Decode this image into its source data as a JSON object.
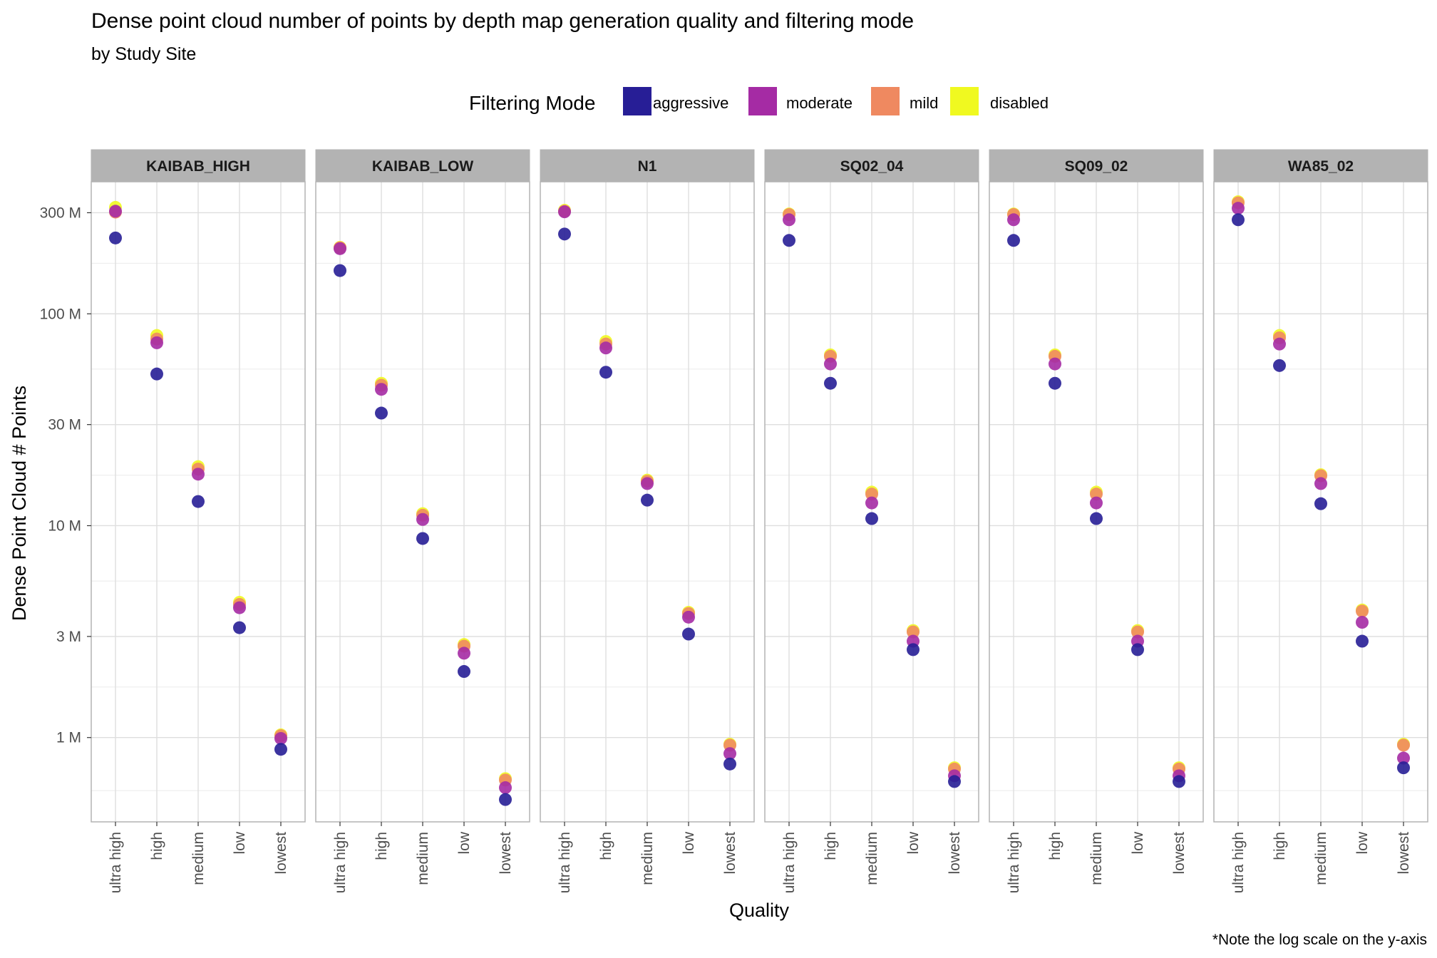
{
  "chart_data": {
    "type": "scatter",
    "title": "Dense point cloud number of points by depth map generation quality and filtering mode",
    "subtitle": "by Study Site",
    "xlabel": "Quality",
    "ylabel": "Dense Point Cloud # Points",
    "caption": "*Note the log scale on the y-axis",
    "y_scale": "log10",
    "ylim": [
      400000,
      420000000
    ],
    "y_ticks": [
      {
        "value": 1000000,
        "label": "1 M"
      },
      {
        "value": 3000000,
        "label": "3 M"
      },
      {
        "value": 10000000,
        "label": "10 M"
      },
      {
        "value": 30000000,
        "label": "30 M"
      },
      {
        "value": 100000000,
        "label": "100 M"
      },
      {
        "value": 300000000,
        "label": "300 M"
      }
    ],
    "y_minor_gridlines": [
      562000,
      1732000,
      5480000,
      17320000,
      54800000,
      173200000
    ],
    "categories": [
      "ultra high",
      "high",
      "medium",
      "low",
      "lowest"
    ],
    "legend": {
      "title": "Filtering Mode",
      "position": "top",
      "items": [
        {
          "name": "aggressive",
          "color": "#271E96"
        },
        {
          "name": "moderate",
          "color": "#A52BA4"
        },
        {
          "name": "mild",
          "color": "#EF8960"
        },
        {
          "name": "disabled",
          "color": "#F0F920"
        }
      ]
    },
    "grid": true,
    "facets": [
      {
        "name": "KAIBAB_HIGH",
        "series": [
          {
            "name": "disabled",
            "values": [
              318000000,
              79000000,
              19000000,
              4350000,
              1030000
            ]
          },
          {
            "name": "mild",
            "values": [
              302000000,
              76000000,
              18500000,
              4250000,
              1020000
            ]
          },
          {
            "name": "moderate",
            "values": [
              305000000,
              73000000,
              17500000,
              4100000,
              990000
            ]
          },
          {
            "name": "aggressive",
            "values": [
              228000000,
              52000000,
              13000000,
              3300000,
              880000
            ]
          }
        ]
      },
      {
        "name": "KAIBAB_LOW",
        "series": [
          {
            "name": "disabled",
            "values": [
              206000000,
              47000000,
              11400000,
              2750000,
              640000
            ]
          },
          {
            "name": "mild",
            "values": [
              205000000,
              46000000,
              11200000,
              2700000,
              630000
            ]
          },
          {
            "name": "moderate",
            "values": [
              203000000,
              44000000,
              10700000,
              2500000,
              580000
            ]
          },
          {
            "name": "aggressive",
            "values": [
              160000000,
              34000000,
              8700000,
              2050000,
              510000
            ]
          }
        ]
      },
      {
        "name": "N1",
        "series": [
          {
            "name": "disabled",
            "values": [
              308000000,
              74000000,
              16400000,
              3900000,
              930000
            ]
          },
          {
            "name": "mild",
            "values": [
              305000000,
              72000000,
              16200000,
              3850000,
              920000
            ]
          },
          {
            "name": "moderate",
            "values": [
              303000000,
              69000000,
              15800000,
              3700000,
              840000
            ]
          },
          {
            "name": "aggressive",
            "values": [
              238000000,
              53000000,
              13200000,
              3080000,
              750000
            ]
          }
        ]
      },
      {
        "name": "SQ02_04",
        "series": [
          {
            "name": "disabled",
            "values": [
              296000000,
              64000000,
              14400000,
              3200000,
              720000
            ]
          },
          {
            "name": "mild",
            "values": [
              294000000,
              63000000,
              14100000,
              3150000,
              710000
            ]
          },
          {
            "name": "moderate",
            "values": [
              278000000,
              58000000,
              12800000,
              2850000,
              660000
            ]
          },
          {
            "name": "aggressive",
            "values": [
              222000000,
              47000000,
              10800000,
              2600000,
              620000
            ]
          }
        ]
      },
      {
        "name": "SQ09_02",
        "series": [
          {
            "name": "disabled",
            "values": [
              296000000,
              64000000,
              14400000,
              3200000,
              720000
            ]
          },
          {
            "name": "mild",
            "values": [
              294000000,
              63000000,
              14100000,
              3150000,
              710000
            ]
          },
          {
            "name": "moderate",
            "values": [
              278000000,
              58000000,
              12800000,
              2850000,
              660000
            ]
          },
          {
            "name": "aggressive",
            "values": [
              222000000,
              47000000,
              10800000,
              2600000,
              620000
            ]
          }
        ]
      },
      {
        "name": "WA85_02",
        "series": [
          {
            "name": "disabled",
            "values": [
              338000000,
              79000000,
              17400000,
              4000000,
              930000
            ]
          },
          {
            "name": "mild",
            "values": [
              334000000,
              77000000,
              17200000,
              3950000,
              920000
            ]
          },
          {
            "name": "moderate",
            "values": [
              315000000,
              72000000,
              15800000,
              3500000,
              800000
            ]
          },
          {
            "name": "aggressive",
            "values": [
              278000000,
              57000000,
              12700000,
              2850000,
              720000
            ]
          }
        ]
      }
    ]
  }
}
